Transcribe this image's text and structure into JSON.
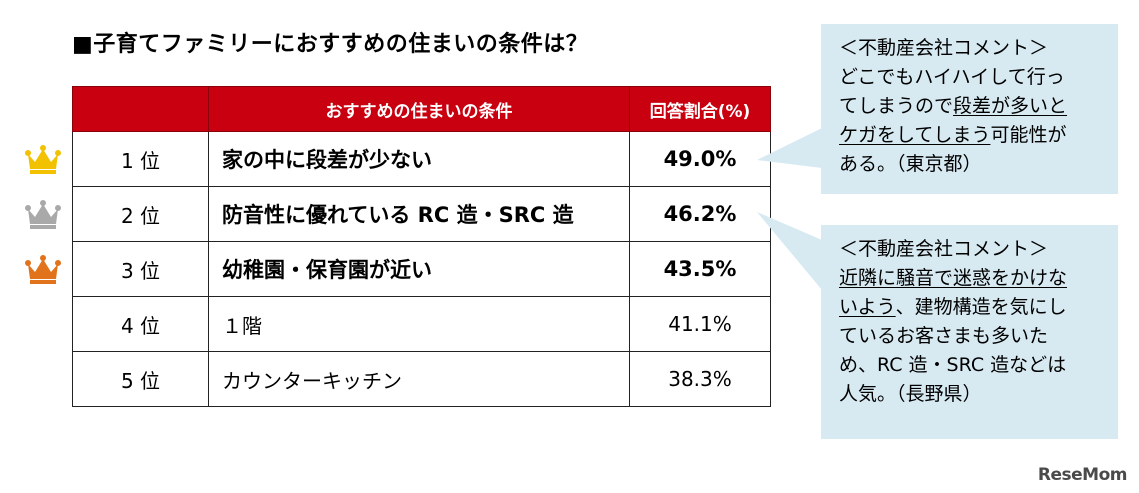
{
  "title": "■子育てファミリーにおすすめの住まいの条件は？",
  "table": {
    "headers": [
      "",
      "おすすめの住まいの条件",
      "回答割合(%)"
    ]
  },
  "chart_data": {
    "type": "table",
    "title": "■子育てファミリーにおすすめの住まいの条件は？",
    "columns": [
      "",
      "おすすめの住まいの条件",
      "回答割合(%)"
    ],
    "rows": [
      {
        "rank": "1 位",
        "condition": "家の中に段差が少ない",
        "percent_label": "49.0%",
        "value": 49.0,
        "crown": "gold-crown-icon"
      },
      {
        "rank": "2 位",
        "condition": "防音性に優れている RC 造・SRC 造",
        "percent_label": "46.2%",
        "value": 46.2,
        "crown": "silver-crown-icon"
      },
      {
        "rank": "3 位",
        "condition": "幼稚園・保育園が近い",
        "percent_label": "43.5%",
        "value": 43.5,
        "crown": "bronze-crown-icon"
      },
      {
        "rank": "4 位",
        "condition": "１階",
        "percent_label": "41.1%",
        "value": 41.1,
        "crown": ""
      },
      {
        "rank": "5 位",
        "condition": "カウンターキッチン",
        "percent_label": "38.3%",
        "value": 38.3,
        "crown": ""
      }
    ]
  },
  "colors": {
    "header_bg": "#c8000f",
    "callout_bg": "#d7eaf2",
    "gold": "#f2c200",
    "silver": "#a9a9a9",
    "bronze": "#e0731c"
  },
  "callouts": [
    {
      "heading": "＜不動産会社コメント＞",
      "lines": [
        [
          {
            "t": "どこでもハイハイして行っ"
          }
        ],
        [
          {
            "t": "てしまうので"
          },
          {
            "t": "段差が多いと",
            "u": true
          }
        ],
        [
          {
            "t": "ケガをしてしまう",
            "u": true
          },
          {
            "t": "可能性が"
          }
        ],
        [
          {
            "t": "ある。（東京都）"
          }
        ]
      ]
    },
    {
      "heading": "＜不動産会社コメント＞",
      "lines": [
        [
          {
            "t": "近隣に騒音で迷惑をかけな",
            "u": true
          }
        ],
        [
          {
            "t": "いよう",
            "u": true
          },
          {
            "t": "、建物構造を気にし"
          }
        ],
        [
          {
            "t": "ているお客さまも多いた"
          }
        ],
        [
          {
            "t": "め、RC 造・SRC 造などは"
          }
        ],
        [
          {
            "t": "人気。（長野県）"
          }
        ]
      ]
    }
  ],
  "logo": "ReseMom"
}
